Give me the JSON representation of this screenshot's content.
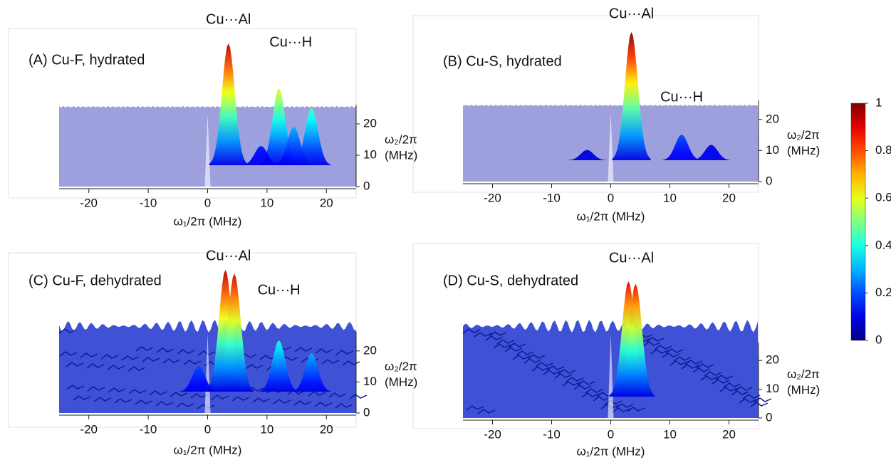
{
  "chart_data": [
    {
      "type": "surface",
      "title": "(A) Cu-F, hydrated",
      "xlabel": "ω₁/2π (MHz)",
      "ylabel": [
        "ω₂/2π",
        "(MHz)"
      ],
      "xlim": [
        -25,
        25
      ],
      "xticks": [
        -20,
        -10,
        0,
        10,
        20
      ],
      "ylim": [
        0,
        25
      ],
      "yticks": [
        0,
        10,
        20
      ],
      "annotations": [
        {
          "text": "Cu···Al",
          "x": 3.5
        },
        {
          "text": "Cu···H",
          "x": 14
        }
      ],
      "peaks": [
        {
          "x": 3.5,
          "intensity": 0.95
        },
        {
          "x": 12,
          "intensity": 0.6
        },
        {
          "x": 14.5,
          "intensity": 0.3
        },
        {
          "x": 17.5,
          "intensity": 0.45
        },
        {
          "x": 9,
          "intensity": 0.15
        }
      ]
    },
    {
      "type": "surface",
      "title": "(B) Cu-S, hydrated",
      "xlabel": "ω₁/2π (MHz)",
      "ylabel": [
        "ω₂/2π",
        "(MHz)"
      ],
      "xlim": [
        -25,
        25
      ],
      "xticks": [
        -20,
        -10,
        0,
        10,
        20
      ],
      "ylim": [
        0,
        25
      ],
      "yticks": [
        0,
        10,
        20
      ],
      "annotations": [
        {
          "text": "Cu···Al",
          "x": 3.5
        },
        {
          "text": "Cu···H",
          "x": 12
        }
      ],
      "peaks": [
        {
          "x": 3.5,
          "intensity": 1
        },
        {
          "x": 12,
          "intensity": 0.2
        },
        {
          "x": 17,
          "intensity": 0.12
        },
        {
          "x": -4,
          "intensity": 0.08
        }
      ]
    },
    {
      "type": "surface",
      "title": "(C) Cu-F, dehydrated",
      "xlabel": "ω₁/2π (MHz)",
      "ylabel": [
        "ω₂/2π",
        "(MHz)"
      ],
      "xlim": [
        -25,
        25
      ],
      "xticks": [
        -20,
        -10,
        0,
        10,
        20
      ],
      "ylim": [
        0,
        25
      ],
      "yticks": [
        0,
        10,
        20
      ],
      "annotations": [
        {
          "text": "Cu···Al",
          "x": 3.5
        },
        {
          "text": "Cu···H",
          "x": 12
        }
      ],
      "peaks": [
        {
          "x": 3,
          "intensity": 0.95
        },
        {
          "x": 4.5,
          "intensity": 0.92
        },
        {
          "x": 12,
          "intensity": 0.4
        },
        {
          "x": 17.5,
          "intensity": 0.3
        },
        {
          "x": -1.5,
          "intensity": 0.2
        }
      ]
    },
    {
      "type": "surface",
      "title": "(D) Cu-S, dehydrated",
      "xlabel": "ω₁/2π (MHz)",
      "ylabel": [
        "ω₂/2π",
        "(MHz)"
      ],
      "xlim": [
        -25,
        25
      ],
      "xticks": [
        -20,
        -10,
        0,
        10,
        20
      ],
      "ylim": [
        0,
        25
      ],
      "yticks": [
        0,
        10,
        20
      ],
      "annotations": [
        {
          "text": "Cu···Al",
          "x": 3.5
        }
      ],
      "peaks": [
        {
          "x": 3,
          "intensity": 0.9
        },
        {
          "x": 4.2,
          "intensity": 0.88
        }
      ]
    },
    {
      "type": "colorbar",
      "clim": [
        0,
        1
      ],
      "ticks": [
        0,
        0.2,
        0.4,
        0.6,
        0.8,
        1
      ]
    }
  ]
}
